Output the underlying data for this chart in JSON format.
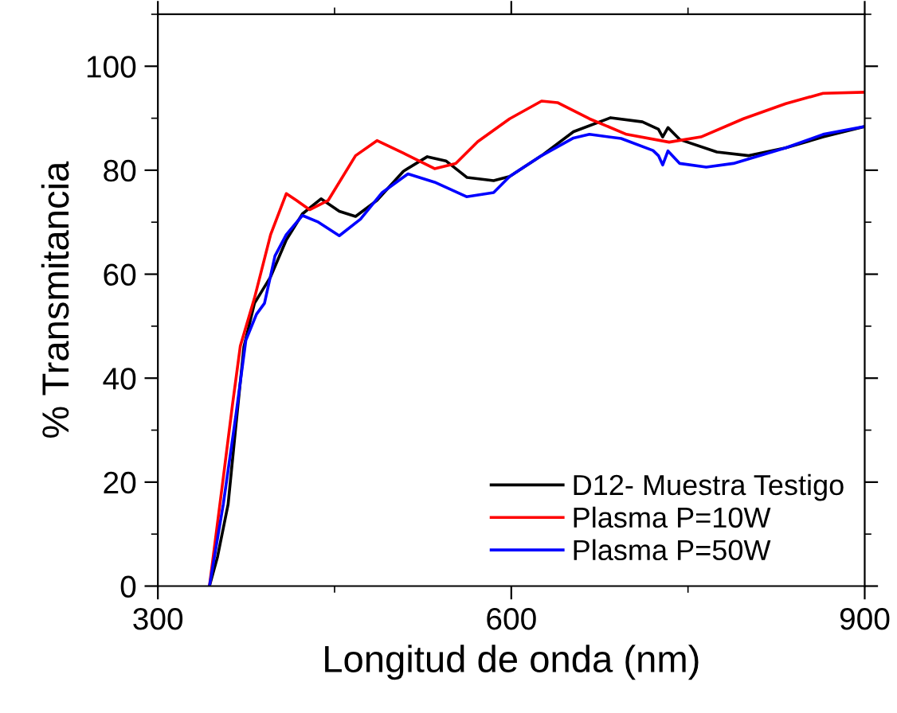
{
  "chart_data": {
    "type": "line",
    "xlabel": "Longitud de onda (nm)",
    "ylabel": "% Transmitancia",
    "xlim": [
      300,
      900
    ],
    "xticks": [
      300,
      600,
      900
    ],
    "ylim": [
      0,
      110
    ],
    "yticks": [
      0,
      20,
      40,
      60,
      80,
      100
    ],
    "grid": false,
    "legend": "bottom right",
    "line_style": "solid",
    "marker": "none",
    "series": [
      {
        "name": "D12- Muestra Testigo",
        "color": "#000000",
        "x": [
          343.8,
          350.6,
          359.6,
          366.3,
          373,
          382,
          395.7,
          409,
          422.7,
          438.5,
          454,
          467.8,
          486,
          508.4,
          528.7,
          544.5,
          562.5,
          585,
          598.6,
          625.7,
          652.8,
          684.3,
          711.3,
          724.9,
          728.5,
          733,
          743,
          774.5,
          801.6,
          833,
          864.7,
          900
        ],
        "values": [
          0,
          5.6,
          15.7,
          31,
          46,
          54.4,
          59.5,
          66.6,
          71.6,
          74.5,
          72.1,
          71.1,
          74.2,
          79.8,
          82.6,
          81.8,
          78.6,
          78,
          78.8,
          82.8,
          87.4,
          90.1,
          89.3,
          87.9,
          86.4,
          88.2,
          85.9,
          83.5,
          82.8,
          84.3,
          86.4,
          88.4
        ]
      },
      {
        "name": "Plasma P=10W",
        "color": "#ff0000",
        "x": [
          343.8,
          355.5,
          363.4,
          370,
          382,
          395.7,
          409,
          417.6,
          428.8,
          444.6,
          467.8,
          486,
          508.4,
          534.9,
          552.8,
          571.5,
          598.6,
          625.7,
          639.2,
          666.3,
          697.8,
          734,
          761,
          797,
          833,
          864.7,
          900
        ],
        "values": [
          0,
          20.8,
          35,
          46.2,
          55.4,
          67.6,
          75.5,
          74.2,
          72.4,
          74.2,
          82.8,
          85.7,
          83.3,
          80.3,
          81.3,
          85.5,
          89.9,
          93.3,
          93,
          89.9,
          86.9,
          85.4,
          86.4,
          89.9,
          92.8,
          94.8,
          95
        ]
      },
      {
        "name": "Plasma P=50W",
        "color": "#0000ff",
        "x": [
          343.8,
          355.5,
          366.3,
          374.7,
          383.7,
          390.5,
          399.4,
          409,
          422.7,
          435.5,
          454,
          472,
          490.4,
          512.3,
          534.9,
          562,
          585,
          598.6,
          625.7,
          652.8,
          666.3,
          693.2,
          720.3,
          724.9,
          728.5,
          733,
          743,
          765.5,
          788.5,
          833,
          864.7,
          900
        ],
        "values": [
          0,
          15.7,
          33,
          47.3,
          52.3,
          54.4,
          63.5,
          67.6,
          71.3,
          70.1,
          67.4,
          70.6,
          75.7,
          79.3,
          77.7,
          74.9,
          75.7,
          78.8,
          82.8,
          86.2,
          86.9,
          86.1,
          83.8,
          82.8,
          81,
          83.7,
          81.3,
          80.6,
          81.3,
          84.3,
          86.9,
          88.4
        ]
      }
    ]
  }
}
